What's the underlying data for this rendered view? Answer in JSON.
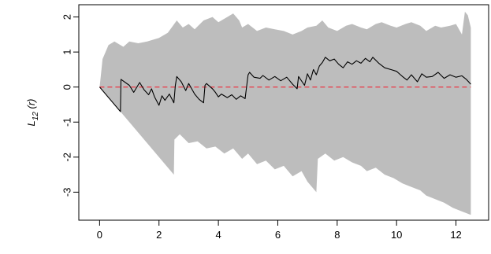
{
  "chart_data": {
    "type": "line",
    "title": "",
    "xlabel": "",
    "ylabel": "L",
    "ylabel_sub": "12",
    "ylabel_suffix": " (r)",
    "xlim": [
      -0.7,
      13.1
    ],
    "ylim": [
      -3.8,
      2.35
    ],
    "xticks": [
      0,
      2,
      4,
      6,
      8,
      10,
      12
    ],
    "yticks": [
      -3,
      -2,
      -1,
      0,
      1,
      2
    ],
    "grid": false,
    "legend": "none",
    "colors": {
      "envelope": "#bdbdbd",
      "observed": "#000000",
      "reference": "#e8434f",
      "frame": "#000000"
    },
    "series": [
      {
        "role": "envelope-upper",
        "x": [
          0,
          0.05,
          0.1,
          0.3,
          0.5,
          0.8,
          1.0,
          1.3,
          1.6,
          2.0,
          2.3,
          2.6,
          2.8,
          3.0,
          3.2,
          3.5,
          3.8,
          4.0,
          4.3,
          4.5,
          4.7,
          4.8,
          5.0,
          5.3,
          5.6,
          5.9,
          6.2,
          6.5,
          6.8,
          7.0,
          7.3,
          7.5,
          7.7,
          8.0,
          8.3,
          8.5,
          8.8,
          9.0,
          9.3,
          9.5,
          9.8,
          10.0,
          10.3,
          10.5,
          10.8,
          11.0,
          11.3,
          11.5,
          11.8,
          12.0,
          12.2,
          12.3,
          12.4,
          12.5
        ],
        "values": [
          0,
          0.4,
          0.8,
          1.2,
          1.3,
          1.15,
          1.3,
          1.25,
          1.3,
          1.4,
          1.55,
          1.9,
          1.7,
          1.8,
          1.65,
          1.9,
          2.0,
          1.85,
          2.0,
          2.1,
          1.9,
          1.7,
          1.8,
          1.6,
          1.7,
          1.65,
          1.6,
          1.5,
          1.6,
          1.7,
          1.75,
          1.9,
          1.7,
          1.6,
          1.75,
          1.8,
          1.7,
          1.65,
          1.8,
          1.85,
          1.75,
          1.7,
          1.8,
          1.85,
          1.75,
          1.6,
          1.75,
          1.7,
          1.75,
          1.8,
          1.5,
          2.15,
          2.05,
          1.7
        ]
      },
      {
        "role": "envelope-lower",
        "x": [
          0,
          0.5,
          1.0,
          1.5,
          2.0,
          2.5,
          2.52,
          2.7,
          3.0,
          3.3,
          3.6,
          3.9,
          4.2,
          4.5,
          4.8,
          5.0,
          5.3,
          5.6,
          5.9,
          6.2,
          6.5,
          6.8,
          7.0,
          7.3,
          7.35,
          7.6,
          7.9,
          8.2,
          8.5,
          8.8,
          9.0,
          9.3,
          9.6,
          9.9,
          10.2,
          10.5,
          10.8,
          11.0,
          11.3,
          11.6,
          11.9,
          12.2,
          12.5
        ],
        "values": [
          0,
          -0.5,
          -1.0,
          -1.5,
          -2.0,
          -2.5,
          -1.5,
          -1.35,
          -1.6,
          -1.55,
          -1.75,
          -1.7,
          -1.9,
          -1.75,
          -2.05,
          -1.9,
          -2.2,
          -2.1,
          -2.35,
          -2.25,
          -2.55,
          -2.4,
          -2.7,
          -3.0,
          -2.05,
          -1.9,
          -2.1,
          -2.0,
          -2.15,
          -2.25,
          -2.4,
          -2.3,
          -2.5,
          -2.6,
          -2.75,
          -2.85,
          -2.95,
          -3.1,
          -3.2,
          -3.3,
          -3.45,
          -3.55,
          -3.65
        ]
      },
      {
        "role": "observed",
        "x": [
          0,
          0.7,
          0.72,
          1.0,
          1.15,
          1.35,
          1.5,
          1.65,
          1.75,
          1.85,
          2.0,
          2.1,
          2.2,
          2.35,
          2.5,
          2.55,
          2.6,
          2.75,
          2.9,
          3.0,
          3.1,
          3.2,
          3.35,
          3.5,
          3.55,
          3.6,
          3.8,
          3.9,
          4.0,
          4.1,
          4.3,
          4.45,
          4.6,
          4.75,
          4.9,
          5.0,
          5.05,
          5.2,
          5.4,
          5.5,
          5.7,
          5.9,
          6.1,
          6.3,
          6.5,
          6.65,
          6.7,
          6.9,
          7.0,
          7.1,
          7.2,
          7.3,
          7.4,
          7.5,
          7.6,
          7.75,
          7.9,
          8.05,
          8.2,
          8.35,
          8.5,
          8.65,
          8.8,
          8.95,
          9.1,
          9.2,
          9.4,
          9.6,
          9.8,
          10.0,
          10.2,
          10.35,
          10.5,
          10.7,
          10.85,
          11.0,
          11.2,
          11.4,
          11.6,
          11.8,
          12.0,
          12.2,
          12.35,
          12.5
        ],
        "values": [
          0,
          -0.7,
          0.22,
          0.05,
          -0.15,
          0.13,
          -0.08,
          -0.22,
          -0.05,
          -0.28,
          -0.52,
          -0.25,
          -0.38,
          -0.2,
          -0.45,
          0.05,
          0.3,
          0.15,
          -0.1,
          0.1,
          -0.05,
          -0.2,
          -0.35,
          -0.45,
          0.05,
          0.1,
          -0.05,
          -0.15,
          -0.28,
          -0.2,
          -0.3,
          -0.22,
          -0.35,
          -0.25,
          -0.33,
          0.35,
          0.42,
          0.28,
          0.25,
          0.33,
          0.2,
          0.3,
          0.18,
          0.28,
          0.08,
          -0.05,
          0.3,
          0.05,
          0.38,
          0.2,
          0.5,
          0.35,
          0.6,
          0.7,
          0.85,
          0.75,
          0.8,
          0.65,
          0.55,
          0.72,
          0.65,
          0.75,
          0.68,
          0.82,
          0.72,
          0.85,
          0.68,
          0.55,
          0.5,
          0.45,
          0.3,
          0.2,
          0.35,
          0.15,
          0.38,
          0.28,
          0.3,
          0.42,
          0.25,
          0.35,
          0.28,
          0.32,
          0.22,
          0.08
        ]
      },
      {
        "role": "reference",
        "x": [
          0,
          12.5
        ],
        "values": [
          0,
          0
        ]
      }
    ]
  }
}
